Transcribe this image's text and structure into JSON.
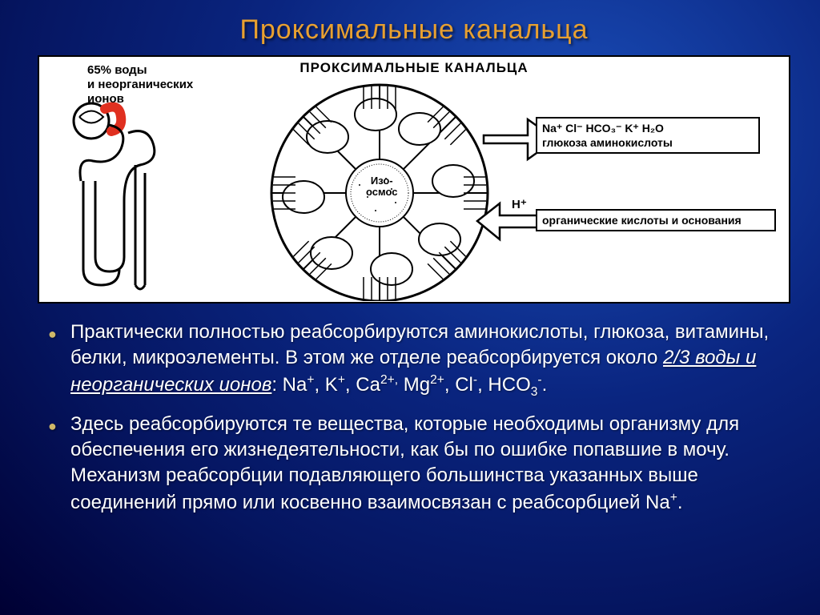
{
  "title": "Проксимальные канальца",
  "diagram": {
    "top_label": "ПРОКСИМАЛЬНЫЕ КАНАЛЬЦА",
    "nephron_label_line1": "65% воды",
    "nephron_label_line2": "и неорганических",
    "nephron_label_line3": "ионов",
    "center_label_line1": "Изо-",
    "center_label_line2": "осмос",
    "arrow1_line1": "Na⁺ Cl⁻ HCO₃⁻ K⁺ H₂O",
    "arrow1_line2": "глюкоза аминокислоты",
    "h_plus": "H⁺",
    "arrow2_text": "органические кислоты и основания",
    "colors": {
      "highlight_red": "#e03020",
      "circle_stroke": "#000000",
      "bg": "#ffffff"
    },
    "circle": {
      "outer_r": 135,
      "inner_r": 40,
      "cells": 8
    }
  },
  "bullets": [
    {
      "html": "Практически полностью реабсорбируются аминокислоты, глюкоза, витамины, белки, микроэлементы. В этом же отделе реабсорбируется около <span class='underline'>2/3 воды и неорганических ионов</span>: Na<sup>+</sup>, K<sup>+</sup>, Ca<sup>2+,</sup> Mg<sup>2+</sup>, Cl<sup>-</sup>, HCO<sub>3</sub><sup>-</sup>."
    },
    {
      "html": "Здесь реабсорбируются те вещества, которые необходимы организму для обеспечения его жизнедеятельности, как бы по ошибке попавшие в мочу. Механизм реабсорбции подавляющего большинства указанных выше соединений прямо или косвенно взаимосвязан с реабсорбцией Na<sup>+</sup>."
    }
  ],
  "style": {
    "title_color": "#e8a030",
    "title_fontsize": 34,
    "body_fontsize": 24,
    "bullet_color": "#d0b868",
    "bg_gradient": [
      "#1a4db8",
      "#0a2580",
      "#051560",
      "#000033"
    ]
  }
}
